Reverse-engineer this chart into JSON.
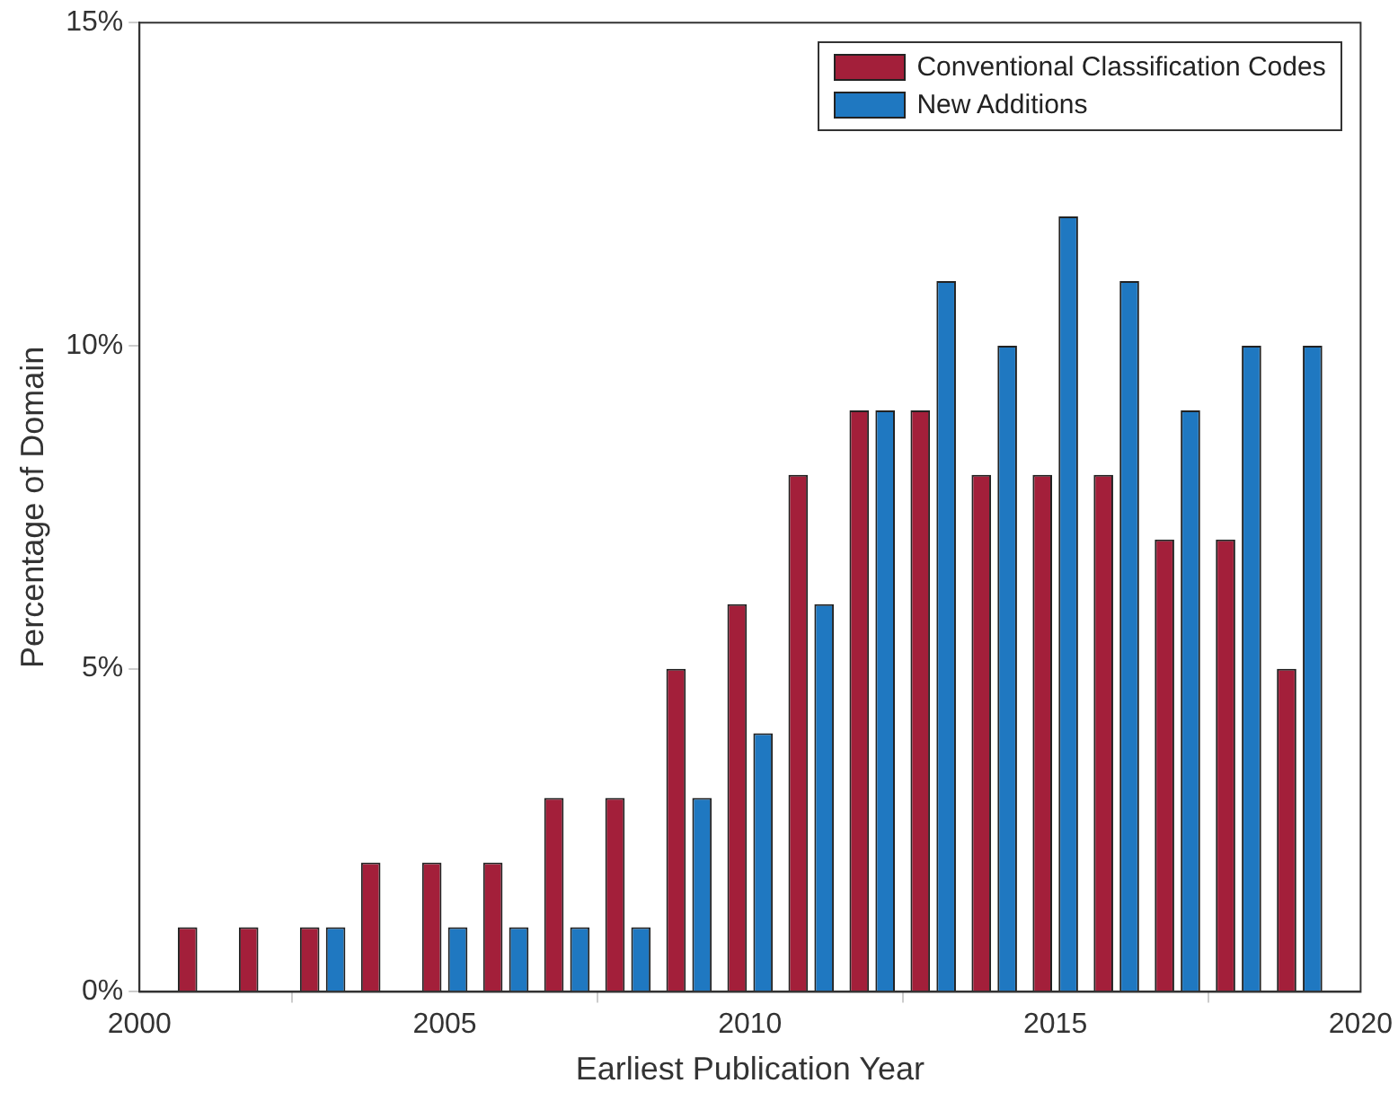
{
  "chart_data": {
    "type": "bar",
    "xlabel": "Earliest Publication Year",
    "ylabel": "Percentage of Domain",
    "x": [
      2001,
      2002,
      2003,
      2004,
      2005,
      2006,
      2007,
      2008,
      2009,
      2010,
      2011,
      2012,
      2013,
      2014,
      2015,
      2016,
      2017,
      2018,
      2019
    ],
    "series": [
      {
        "name": "Conventional Classification Codes",
        "color": "#a31f3a",
        "values": [
          1,
          1,
          1,
          2,
          2,
          2,
          3,
          3,
          5,
          6,
          8,
          9,
          9,
          8,
          8,
          8,
          7,
          7,
          5
        ]
      },
      {
        "name": "New Additions",
        "color": "#1f78c1",
        "values": [
          null,
          null,
          1,
          null,
          1,
          1,
          1,
          1,
          3,
          4,
          6,
          9,
          11,
          10,
          12,
          11,
          9,
          10,
          10
        ]
      }
    ],
    "xlim": [
      2000,
      2020
    ],
    "xticks": [
      2000,
      2005,
      2010,
      2015,
      2020
    ],
    "ylim": [
      0,
      15
    ],
    "yticks": [
      {
        "value": 0,
        "label": "0%"
      },
      {
        "value": 5,
        "label": "5%"
      },
      {
        "value": 10,
        "label": "10%"
      },
      {
        "value": 15,
        "label": "15%"
      }
    ],
    "grid": false,
    "legend": "top right"
  }
}
